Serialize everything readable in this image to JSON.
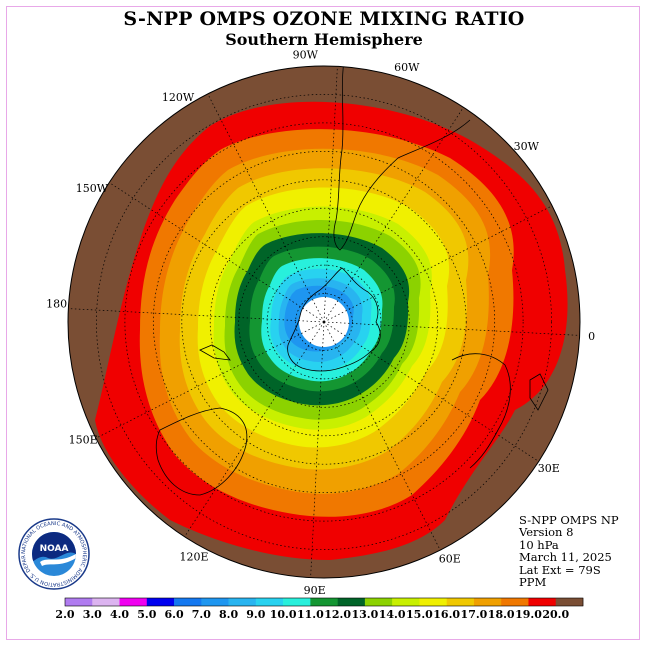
{
  "title": "S-NPP OMPS OZONE MIXING RATIO",
  "subtitle": "Southern Hemisphere",
  "longitude_labels": [
    "90W",
    "60W",
    "30W",
    "0",
    "30E",
    "60E",
    "90E",
    "120E",
    "150E",
    "180",
    "150W",
    "120W"
  ],
  "info": {
    "line1": "S-NPP OMPS NP",
    "line2": "Version 8",
    "line3": "10 hPa",
    "line4": "March 11, 2025",
    "line5": "Lat Ext = 79S",
    "line6": "PPM"
  },
  "logo": {
    "text": "NOAA",
    "ring_text": "NATIONAL OCEANIC AND ATMOSPHERIC ADMINISTRATION U.S. DEPARTMENT OF COMMERCE"
  },
  "colorbar": {
    "ticks": [
      "2.0",
      "3.0",
      "4.0",
      "5.0",
      "6.0",
      "7.0",
      "8.0",
      "9.0",
      "10.0",
      "11.0",
      "12.0",
      "13.0",
      "14.0",
      "15.0",
      "16.0",
      "17.0",
      "18.0",
      "19.0",
      "20.0"
    ],
    "colors": [
      "#b07cf0",
      "#dcb4f0",
      "#f000f0",
      "#0000f0",
      "#1478f0",
      "#1e96f0",
      "#28b4f0",
      "#28d2f0",
      "#28f0dc",
      "#149632",
      "#006428",
      "#8cd200",
      "#c8f000",
      "#f0f000",
      "#f0c800",
      "#f0a000",
      "#f07800",
      "#f00000",
      "#7a4e34"
    ]
  },
  "contour_colors": {
    "ring_outer": "#7a4e34",
    "level_19": "#f00000",
    "level_18": "#f07800",
    "level_17": "#f0a000",
    "level_16": "#f0c800",
    "level_15": "#f0f000",
    "level_14": "#c8f000",
    "level_13": "#8cd200",
    "level_12": "#006428",
    "level_11": "#149632",
    "level_10": "#28f0dc",
    "level_9": "#28d2f0",
    "level_8": "#28b4f0",
    "level_7": "#1e96f0",
    "no_data": "#ffffff"
  }
}
